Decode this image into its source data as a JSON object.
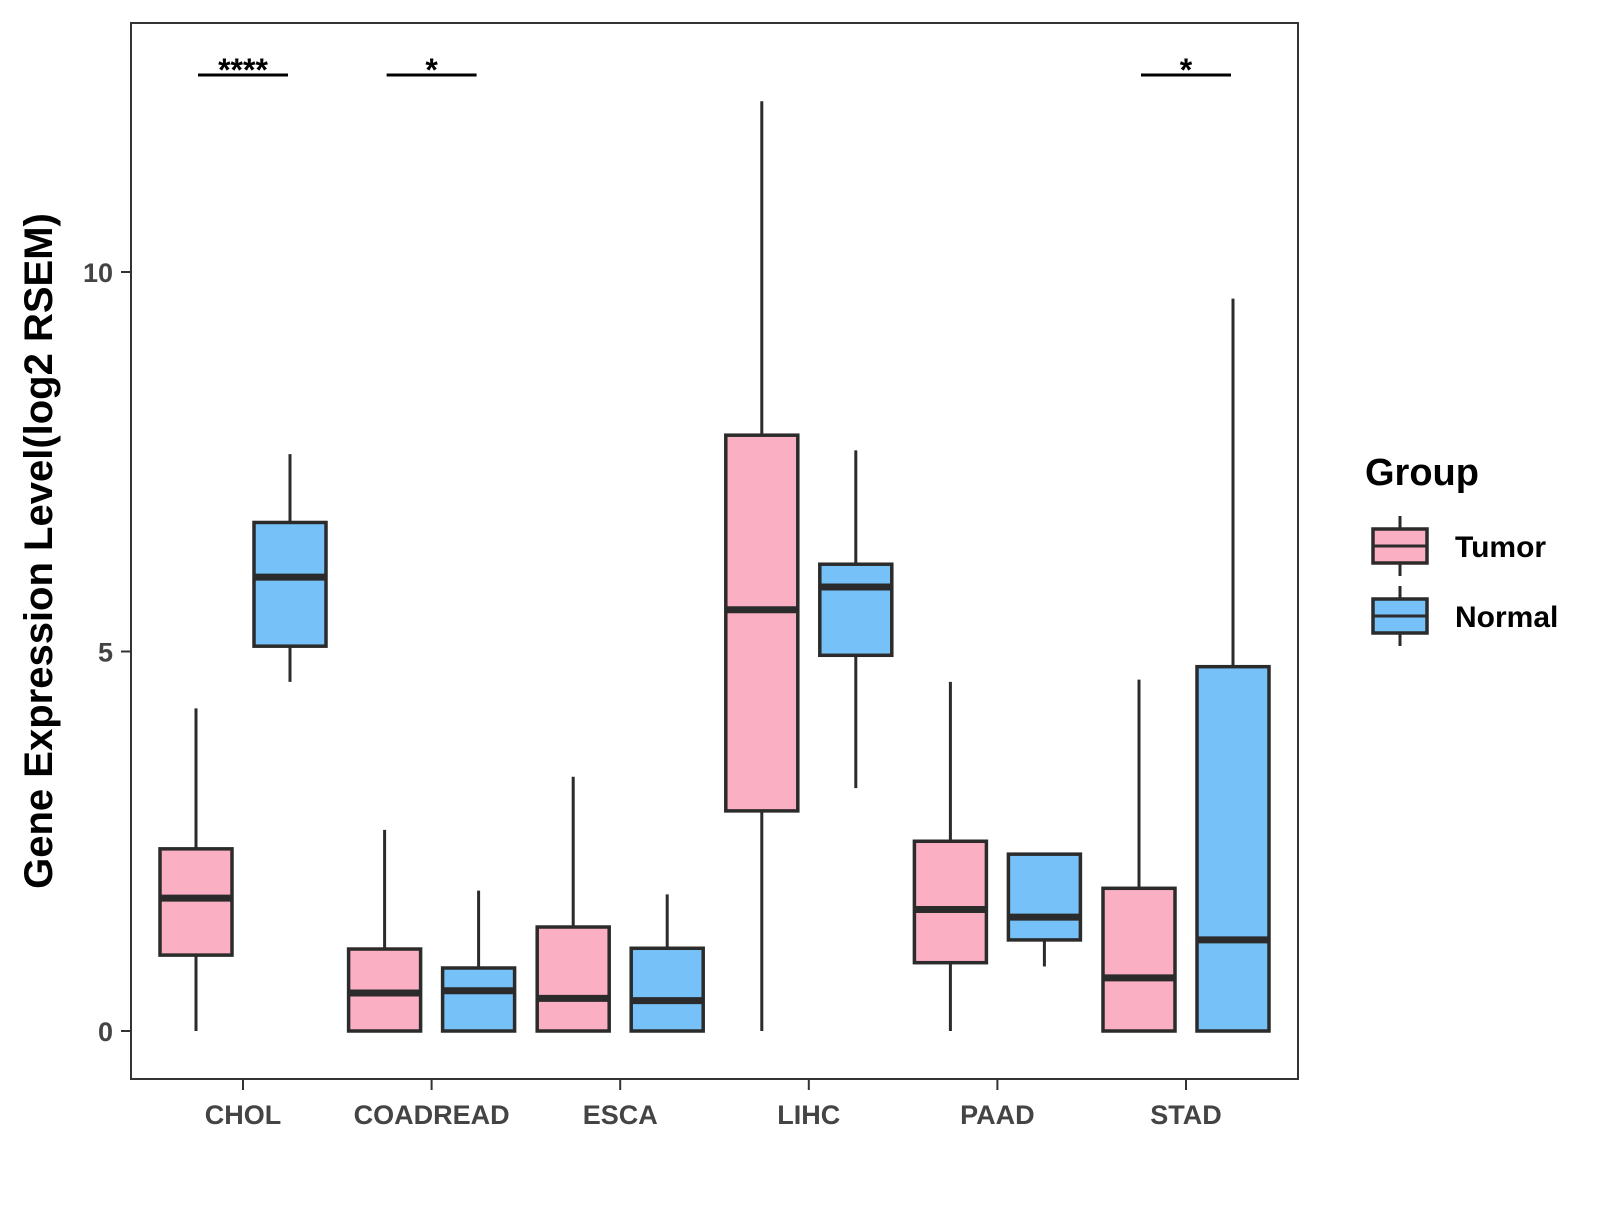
{
  "chart_data": {
    "type": "boxplot",
    "title": "",
    "xlabel": "",
    "ylabel": "Gene Expression Level(log2 RSEM)",
    "ylim": [
      -0.6,
      13.3
    ],
    "y_ticks": [
      0,
      5,
      10
    ],
    "grid": false,
    "categories": [
      "CHOL",
      "COADREAD",
      "ESCA",
      "LIHC",
      "PAAD",
      "STAD"
    ],
    "legend": {
      "title": "Group",
      "position": "right",
      "entries": [
        {
          "label": "Tumor",
          "color": "#FBAFC2"
        },
        {
          "label": "Normal",
          "color": "#76C1F8"
        }
      ]
    },
    "series": [
      {
        "name": "Tumor",
        "color": "#FBAFC2",
        "boxes": [
          {
            "min": 0.0,
            "q1": 1.0,
            "median": 1.75,
            "q3": 2.4,
            "max": 4.25
          },
          {
            "min": 0.0,
            "q1": 0.0,
            "median": 0.5,
            "q3": 1.08,
            "max": 2.65
          },
          {
            "min": 0.0,
            "q1": 0.0,
            "median": 0.43,
            "q3": 1.37,
            "max": 3.35
          },
          {
            "min": 0.0,
            "q1": 2.9,
            "median": 5.55,
            "q3": 7.85,
            "max": 12.25
          },
          {
            "min": 0.0,
            "q1": 0.9,
            "median": 1.6,
            "q3": 2.5,
            "max": 4.6
          },
          {
            "min": 0.0,
            "q1": 0.0,
            "median": 0.7,
            "q3": 1.88,
            "max": 4.63
          }
        ]
      },
      {
        "name": "Normal",
        "color": "#76C1F8",
        "boxes": [
          {
            "min": 4.6,
            "q1": 5.07,
            "median": 5.98,
            "q3": 6.7,
            "max": 7.6
          },
          {
            "min": 0.0,
            "q1": 0.0,
            "median": 0.53,
            "q3": 0.83,
            "max": 1.85
          },
          {
            "min": 0.0,
            "q1": 0.0,
            "median": 0.4,
            "q3": 1.09,
            "max": 1.8
          },
          {
            "min": 3.2,
            "q1": 4.95,
            "median": 5.85,
            "q3": 6.15,
            "max": 7.65
          },
          {
            "min": 0.85,
            "q1": 1.2,
            "median": 1.5,
            "q3": 2.33,
            "max": 2.33
          },
          {
            "min": 0.0,
            "q1": 0.0,
            "median": 1.2,
            "q3": 4.8,
            "max": 9.65
          }
        ]
      }
    ],
    "annotations": [
      {
        "category": "CHOL",
        "label": "****"
      },
      {
        "category": "COADREAD",
        "label": "*"
      },
      {
        "category": "STAD",
        "label": "*"
      }
    ]
  }
}
